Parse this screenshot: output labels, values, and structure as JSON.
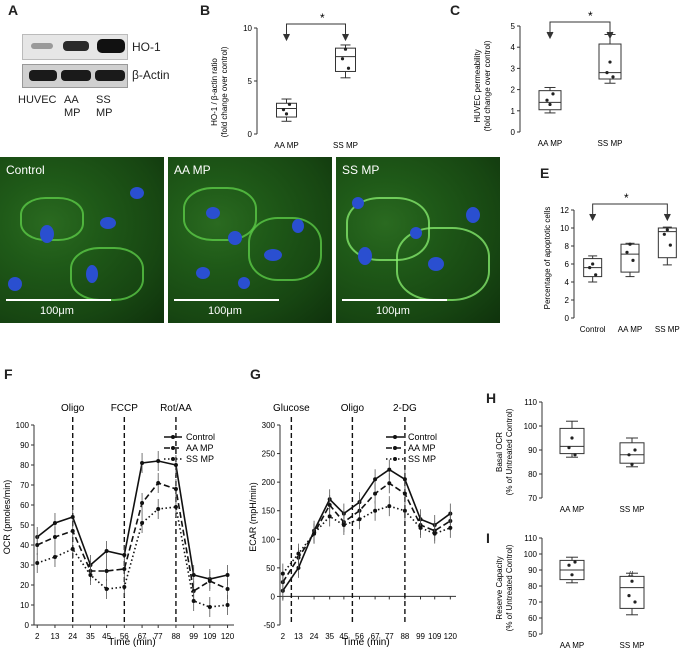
{
  "panels": {
    "A": {
      "letter": "A",
      "bands": [
        "HO-1",
        "β-Actin"
      ],
      "lanes": [
        "HUVEC",
        "AA\nMP",
        "SS\nMP"
      ]
    },
    "B": {
      "letter": "B",
      "ylabel": "HO-1 / β-actin ratio",
      "ylabel2": "(fold change over control)",
      "star": "*",
      "chart_data": {
        "type": "box",
        "categories": [
          "AA MP",
          "SS MP"
        ],
        "ylim": [
          0,
          10
        ],
        "yticks": [
          0,
          5,
          10
        ],
        "boxes": [
          {
            "min": 1.2,
            "q1": 1.6,
            "median": 2.4,
            "q3": 2.9,
            "max": 3.3
          },
          {
            "min": 5.3,
            "q1": 5.9,
            "median": 7.3,
            "q3": 8.1,
            "max": 8.4
          }
        ],
        "points": [
          [
            2.3,
            1.9,
            2.8
          ],
          [
            7.1,
            8.0,
            6.2
          ]
        ]
      }
    },
    "C": {
      "letter": "C",
      "ylabel": "HUVEC permeability",
      "ylabel2": "(fold change over control)",
      "star": "*",
      "chart_data": {
        "type": "box",
        "categories": [
          "AA MP",
          "SS MP"
        ],
        "ylim": [
          0,
          5
        ],
        "yticks": [
          0,
          1,
          2,
          3,
          4,
          5
        ],
        "boxes": [
          {
            "min": 0.9,
            "q1": 1.05,
            "median": 1.4,
            "q3": 1.95,
            "max": 2.1
          },
          {
            "min": 2.3,
            "q1": 2.5,
            "median": 2.8,
            "q3": 4.15,
            "max": 4.6
          }
        ],
        "points": [
          [
            1.5,
            1.3,
            1.8
          ],
          [
            2.8,
            3.3,
            2.6
          ]
        ]
      }
    },
    "D": {
      "letter": "D",
      "images": [
        {
          "caption": "Control",
          "scale": "100μm"
        },
        {
          "caption": "AA MP",
          "scale": "100μm"
        },
        {
          "caption": "SS MP",
          "scale": "100μm"
        }
      ]
    },
    "E": {
      "letter": "E",
      "ylabel": "Percentage of apoptotic cells",
      "star": "*",
      "chart_data": {
        "type": "box",
        "categories": [
          "Control",
          "AA MP",
          "SS MP"
        ],
        "ylim": [
          0,
          12
        ],
        "yticks": [
          0,
          2,
          4,
          6,
          8,
          10,
          12
        ],
        "boxes": [
          {
            "min": 4.0,
            "q1": 4.6,
            "median": 5.6,
            "q3": 6.6,
            "max": 6.9
          },
          {
            "min": 4.6,
            "q1": 5.1,
            "median": 7.1,
            "q3": 8.2,
            "max": 8.3
          },
          {
            "min": 5.9,
            "q1": 6.7,
            "median": 9.6,
            "q3": 10.0,
            "max": 10.1
          }
        ],
        "points": [
          [
            5.6,
            6.0,
            4.8
          ],
          [
            7.3,
            8.2,
            6.4
          ],
          [
            9.3,
            9.8,
            8.1
          ]
        ]
      }
    },
    "F": {
      "letter": "F",
      "ylabel": "OCR (pmoles/min)",
      "xlabel": "Time (min)",
      "markers": [
        {
          "label": "Oligo",
          "x": 24
        },
        {
          "label": "FCCP",
          "x": 56
        },
        {
          "label": "Rot/AA",
          "x": 88
        }
      ],
      "chart_data": {
        "type": "line",
        "x": [
          2,
          13,
          24,
          35,
          45,
          56,
          67,
          77,
          88,
          99,
          109,
          120
        ],
        "xticks": [
          2,
          13,
          24,
          35,
          45,
          56,
          67,
          77,
          88,
          99,
          109,
          120
        ],
        "ylim": [
          0,
          100
        ],
        "yticks": [
          0,
          10,
          20,
          30,
          40,
          50,
          60,
          70,
          80,
          90,
          100
        ],
        "series": [
          {
            "name": "Control",
            "dash": "",
            "values": [
              44,
              51,
              54,
              30,
              37,
              35,
              81,
              82,
              80,
              25,
              23,
              25
            ]
          },
          {
            "name": "AA MP",
            "dash": "6,3",
            "values": [
              40,
              44,
              47,
              27,
              27,
              28,
              61,
              71,
              68,
              17,
              22,
              18
            ]
          },
          {
            "name": "SS MP",
            "dash": "1.5,2.5",
            "values": [
              31,
              34,
              38,
              25,
              18,
              19,
              51,
              58,
              59,
              12,
              9,
              10
            ]
          }
        ]
      }
    },
    "G": {
      "letter": "G",
      "ylabel": "ECAR (mpH/min)",
      "xlabel": "Time (min)",
      "markers": [
        {
          "label": "Glucose",
          "x": 8
        },
        {
          "label": "Oligo",
          "x": 51
        },
        {
          "label": "2-DG",
          "x": 88
        }
      ],
      "chart_data": {
        "type": "line",
        "x": [
          2,
          13,
          24,
          35,
          45,
          56,
          67,
          77,
          88,
          99,
          109,
          120
        ],
        "xticks": [
          2,
          13,
          24,
          35,
          45,
          56,
          67,
          77,
          88,
          99,
          109,
          120
        ],
        "ylim": [
          -50,
          300
        ],
        "yticks": [
          -50,
          0,
          50,
          100,
          150,
          200,
          250,
          300
        ],
        "series": [
          {
            "name": "Control",
            "dash": "",
            "values": [
              10,
              50,
              115,
              170,
              145,
              165,
              205,
              222,
              205,
              135,
              125,
              145
            ]
          },
          {
            "name": "AA MP",
            "dash": "6,3",
            "values": [
              25,
              68,
              110,
              160,
              130,
              150,
              180,
              198,
              180,
              125,
              115,
              132
            ]
          },
          {
            "name": "SS MP",
            "dash": "1.5,2.5",
            "values": [
              40,
              75,
              110,
              140,
              125,
              135,
              150,
              158,
              150,
              120,
              110,
              120
            ]
          }
        ]
      }
    },
    "H": {
      "letter": "H",
      "ylabel": "Basal OCR",
      "ylabel2": "(% of Untreated Control)",
      "chart_data": {
        "type": "box",
        "categories": [
          "AA MP",
          "SS MP"
        ],
        "ylim": [
          70,
          110
        ],
        "yticks": [
          70,
          80,
          90,
          100,
          110
        ],
        "boxes": [
          {
            "min": 87,
            "q1": 88.5,
            "median": 91.5,
            "q3": 99,
            "max": 102
          },
          {
            "min": 83,
            "q1": 84.5,
            "median": 88,
            "q3": 93,
            "max": 95
          }
        ],
        "points": [
          [
            91,
            95,
            88
          ],
          [
            88,
            84,
            90
          ]
        ]
      }
    },
    "I": {
      "letter": "I",
      "ylabel": "Reserve Capacity",
      "ylabel2": "(% of Untreated Control)",
      "hash": "#",
      "chart_data": {
        "type": "box",
        "categories": [
          "AA MP",
          "SS MP"
        ],
        "ylim": [
          50,
          110
        ],
        "yticks": [
          50,
          60,
          70,
          80,
          90,
          100,
          110
        ],
        "boxes": [
          {
            "min": 82,
            "q1": 84,
            "median": 90,
            "q3": 96,
            "max": 98
          },
          {
            "min": 62,
            "q1": 66,
            "median": 79,
            "q3": 86,
            "max": 88
          }
        ],
        "points": [
          [
            93,
            87,
            95
          ],
          [
            74,
            83,
            70
          ]
        ]
      }
    }
  }
}
